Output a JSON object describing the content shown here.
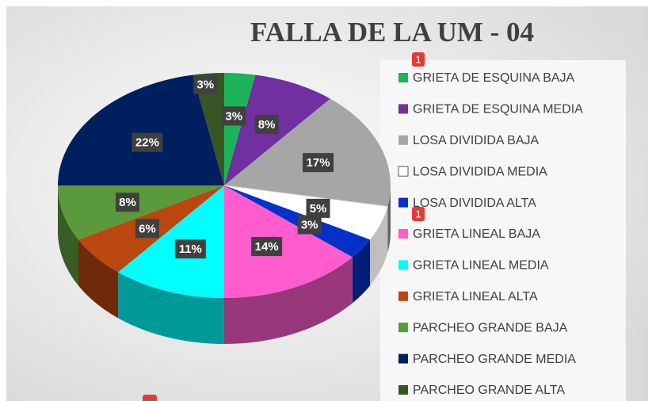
{
  "chart_data": {
    "type": "pie",
    "title": "FALLA DE LA UM - 04",
    "categories": [
      "GRIETA DE ESQUINA BAJA",
      "GRIETA DE ESQUINA MEDIA",
      "LOSA DIVIDIDA BAJA",
      "LOSA DIVIDIDA MEDIA",
      "LOSA DIVIDIDA ALTA",
      "GRIETA LINEAL BAJA",
      "GRIETA LINEAL MEDIA",
      "GRIETA LINEAL ALTA",
      "PARCHEO GRANDE BAJA",
      "PARCHEO GRANDE MEDIA",
      "PARCHEO GRANDE ALTA"
    ],
    "values": [
      3,
      8,
      17,
      5,
      3,
      14,
      11,
      6,
      8,
      22,
      3
    ],
    "value_labels": [
      "3%",
      "8%",
      "17%",
      "5%",
      "3%",
      "14%",
      "11%",
      "6%",
      "8%",
      "22%",
      "3%"
    ],
    "colors": [
      "#1db35b",
      "#7030a0",
      "#a6a6a6",
      "#ffffff",
      "#0432c8",
      "#ff5ccd",
      "#00ffff",
      "#b9470f",
      "#5b9a3c",
      "#001f5f",
      "#375623"
    ],
    "legend": "right",
    "badges": [
      "1",
      "1"
    ]
  }
}
